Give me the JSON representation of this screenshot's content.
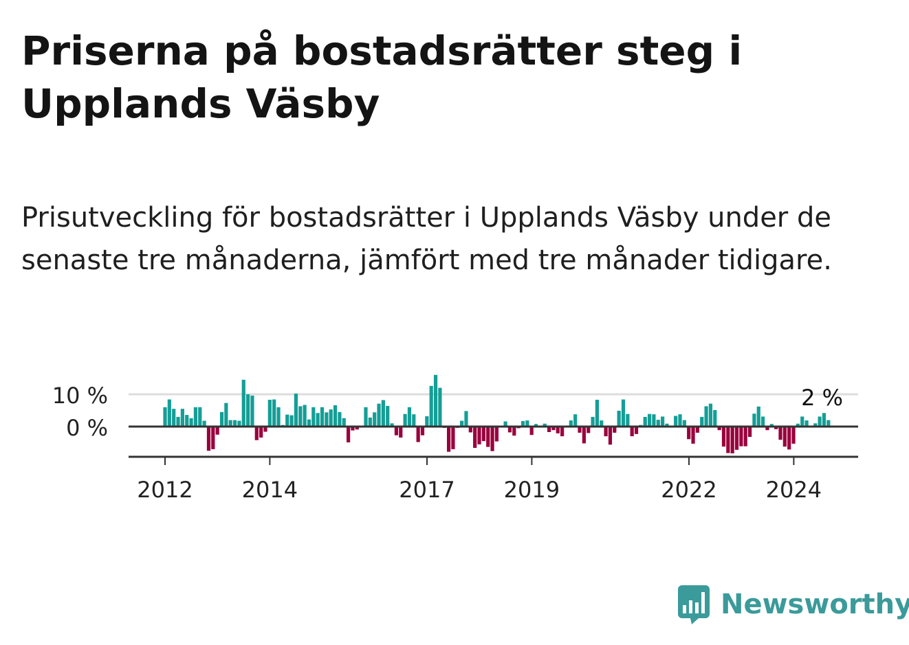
{
  "title": "Priserna på bostadsrätter steg i Upplands Väsby",
  "subtitle": "Prisutveckling för bostadsrätter i Upplands Väsby under de senaste tre månaderna, jämfört med tre månader tidigare.",
  "logo": {
    "text": "Newsworthy",
    "icon": "newsworthy-bar-chart-icon",
    "color": "#3b9a9a"
  },
  "colors": {
    "positive": "#149e96",
    "negative": "#99003d",
    "axis": "#333333",
    "grid": "#dddddd"
  },
  "chart_data": {
    "type": "bar",
    "title": "",
    "xlabel": "",
    "ylabel": "",
    "y_unit": "%",
    "ylim": [
      -9,
      16
    ],
    "y_ticks": [
      {
        "value": 0,
        "label": "0 %"
      },
      {
        "value": 10,
        "label": "10 %"
      }
    ],
    "x_ticks": [
      {
        "x": 2012,
        "label": "2012"
      },
      {
        "x": 2014,
        "label": "2014"
      },
      {
        "x": 2017,
        "label": "2017"
      },
      {
        "x": 2019,
        "label": "2019"
      },
      {
        "x": 2022,
        "label": "2022"
      },
      {
        "x": 2024,
        "label": "2024"
      }
    ],
    "grid": true,
    "legend": "none",
    "x_start": 2012.0,
    "x_step": 0.0833,
    "values": [
      6,
      8.4,
      5.5,
      3,
      5.5,
      3.6,
      2.6,
      6,
      6,
      1.8,
      -7.5,
      -7,
      -2.5,
      4.5,
      7.3,
      2,
      2,
      1.8,
      14.5,
      10,
      9.6,
      -4.2,
      -3.4,
      -1.6,
      8.3,
      8.4,
      6,
      0.5,
      3.7,
      3.5,
      10.2,
      6.3,
      6.7,
      2.2,
      6,
      4.2,
      6,
      4.4,
      5.3,
      6.6,
      4.5,
      2.6,
      -4.9,
      -1.2,
      -0.9,
      0.3,
      6,
      2.8,
      4.4,
      7.1,
      8.2,
      6.4,
      1,
      -2.7,
      -3.4,
      3.9,
      6,
      3.8,
      -4.8,
      -2.7,
      3.2,
      12.6,
      16,
      12,
      -0.4,
      -7.8,
      -7,
      -0.4,
      1.8,
      4.8,
      -1.8,
      -6.6,
      -5.5,
      -4.5,
      -6.3,
      -7.6,
      -4.6,
      -0.2,
      1.6,
      -1.8,
      -2.8,
      -0.5,
      1.7,
      1.9,
      -2.6,
      0.8,
      -0.2,
      0.9,
      -1.7,
      -1.1,
      -2.1,
      -3,
      -0.2,
      1.9,
      3.8,
      -1.9,
      -5.2,
      -2,
      3,
      8.3,
      1.9,
      -3,
      -5.6,
      -1.9,
      4.9,
      8.4,
      3.9,
      -3,
      -2.3,
      0.5,
      3,
      3.9,
      3.8,
      2.1,
      3.1,
      0.9,
      -0.2,
      3.3,
      3.8,
      2,
      -3.9,
      -5.3,
      -1.9,
      3,
      6.3,
      7.1,
      5.1,
      -1.1,
      -6.2,
      -8.2,
      -8.3,
      -7.2,
      -6.1,
      -6.1,
      -3.2,
      4,
      6.2,
      3.1,
      -1.1,
      0.8,
      -0.8,
      -4.1,
      -6.2,
      -7.1,
      -5.3,
      0.9,
      3.1,
      1.9,
      -0.3,
      1,
      3.1,
      4.2,
      2
    ],
    "annotations": [
      {
        "text": "2 %"
      }
    ]
  }
}
